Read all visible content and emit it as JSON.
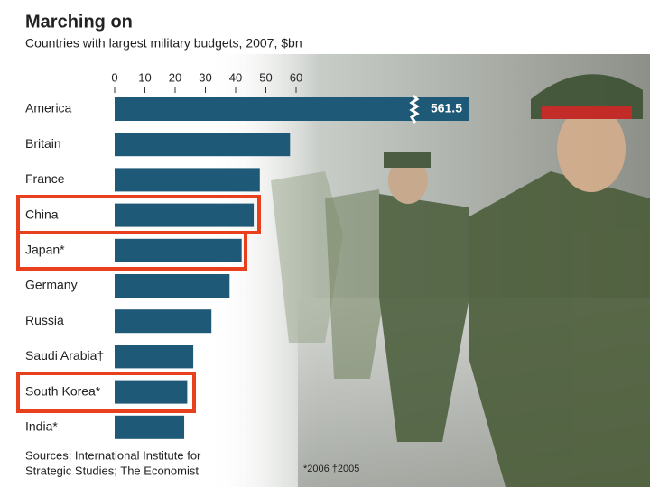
{
  "chart_data": {
    "type": "bar",
    "orientation": "horizontal",
    "title": "Marching on",
    "subtitle": "Countries with largest military budgets, 2007, $bn",
    "categories": [
      "America",
      "Britain",
      "France",
      "China",
      "Japan*",
      "Germany",
      "Russia",
      "Saudi Arabia†",
      "South Korea*",
      "India*"
    ],
    "values": [
      561.5,
      58,
      48,
      46,
      42,
      38,
      32,
      26,
      24,
      23
    ],
    "value_labels": [
      "561.5",
      null,
      null,
      null,
      null,
      null,
      null,
      null,
      null,
      null
    ],
    "color": "#1e5a78",
    "xlim": [
      0,
      60
    ],
    "xticks": [
      0,
      10,
      20,
      30,
      40,
      50,
      60
    ],
    "footnote": "*2006 †2005",
    "source": [
      "Sources: International Institute for",
      "Strategic Studies; The Economist"
    ]
  }
}
